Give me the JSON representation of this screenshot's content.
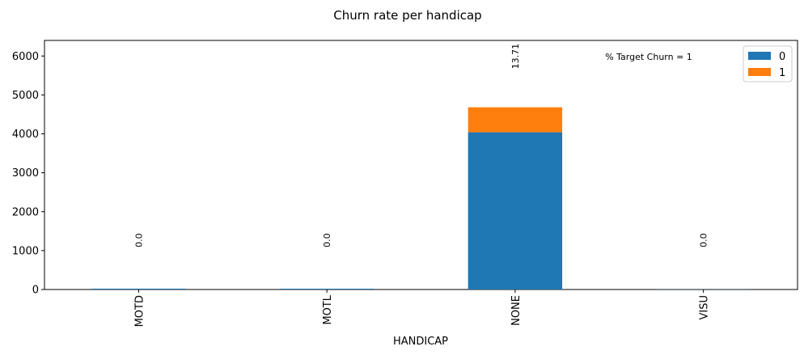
{
  "chart_data": {
    "type": "bar",
    "stacked": true,
    "title": "Churn rate per handicap",
    "xlabel": "HANDICAP",
    "ylabel": "",
    "categories": [
      "MOTD",
      "MOTL",
      "NONE",
      "VISU"
    ],
    "series": [
      {
        "name": "0",
        "color": "#1f77b4",
        "values": [
          22,
          20,
          4040,
          3
        ]
      },
      {
        "name": "1",
        "color": "#ff7f0e",
        "values": [
          0,
          0,
          642,
          0
        ]
      }
    ],
    "annotations": [
      "0.0",
      "0.0",
      "13.71",
      "0.0"
    ],
    "annotation_note": "% Target Churn = 1",
    "ylim": [
      0,
      6400
    ],
    "yticks": [
      0,
      1000,
      2000,
      3000,
      4000,
      5000,
      6000
    ],
    "legend_position": "top-right",
    "grid": false
  }
}
